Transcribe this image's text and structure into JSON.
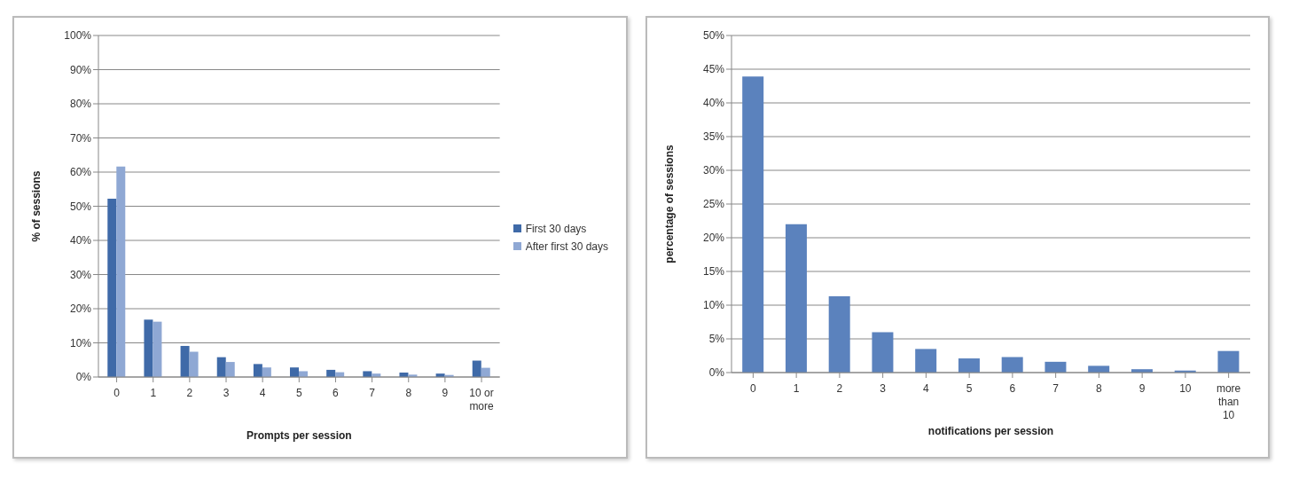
{
  "chart_data": [
    {
      "type": "bar",
      "xlabel": "Prompts per session",
      "ylabel": "% of sessions",
      "categories": [
        "0",
        "1",
        "2",
        "3",
        "4",
        "5",
        "6",
        "7",
        "8",
        "9",
        "10 or more"
      ],
      "series": [
        {
          "name": "First 30 days",
          "color": "#3f6aa8",
          "values": [
            52.2,
            16.8,
            9.1,
            5.8,
            3.8,
            2.8,
            2.1,
            1.7,
            1.3,
            1.0,
            4.8
          ]
        },
        {
          "name": "After first 30 days",
          "color": "#8fa8d4",
          "values": [
            61.6,
            16.2,
            7.4,
            4.4,
            2.8,
            1.7,
            1.4,
            1.0,
            0.7,
            0.6,
            2.7
          ]
        }
      ],
      "ylim": [
        0,
        100
      ],
      "yticks": [
        {
          "value": 0,
          "label": "0%"
        },
        {
          "value": 10,
          "label": "10%"
        },
        {
          "value": 20,
          "label": "20%"
        },
        {
          "value": 30,
          "label": "30%"
        },
        {
          "value": 40,
          "label": "40%"
        },
        {
          "value": 50,
          "label": "50%"
        },
        {
          "value": 60,
          "label": "60%"
        },
        {
          "value": 70,
          "label": "70%"
        },
        {
          "value": 80,
          "label": "80%"
        },
        {
          "value": 90,
          "label": "90%"
        },
        {
          "value": 100,
          "label": "100%"
        }
      ],
      "grid": "y",
      "legend": "right"
    },
    {
      "type": "bar",
      "xlabel": "notifications per session",
      "ylabel": "percentage of sessions",
      "categories": [
        "0",
        "1",
        "2",
        "3",
        "4",
        "5",
        "6",
        "7",
        "8",
        "9",
        "10",
        "more than 10"
      ],
      "series": [
        {
          "color": "#5b82bd",
          "values": [
            43.9,
            22.0,
            11.3,
            6.0,
            3.5,
            2.1,
            2.3,
            1.6,
            1.0,
            0.5,
            0.3,
            3.2
          ]
        }
      ],
      "ylim": [
        0,
        50
      ],
      "yticks": [
        {
          "value": 0,
          "label": "0%"
        },
        {
          "value": 5,
          "label": "5%"
        },
        {
          "value": 10,
          "label": "10%"
        },
        {
          "value": 15,
          "label": "15%"
        },
        {
          "value": 20,
          "label": "20%"
        },
        {
          "value": 25,
          "label": "25%"
        },
        {
          "value": 30,
          "label": "30%"
        },
        {
          "value": 35,
          "label": "35%"
        },
        {
          "value": 40,
          "label": "40%"
        },
        {
          "value": 45,
          "label": "45%"
        },
        {
          "value": 50,
          "label": "50%"
        }
      ],
      "grid": "y"
    }
  ]
}
